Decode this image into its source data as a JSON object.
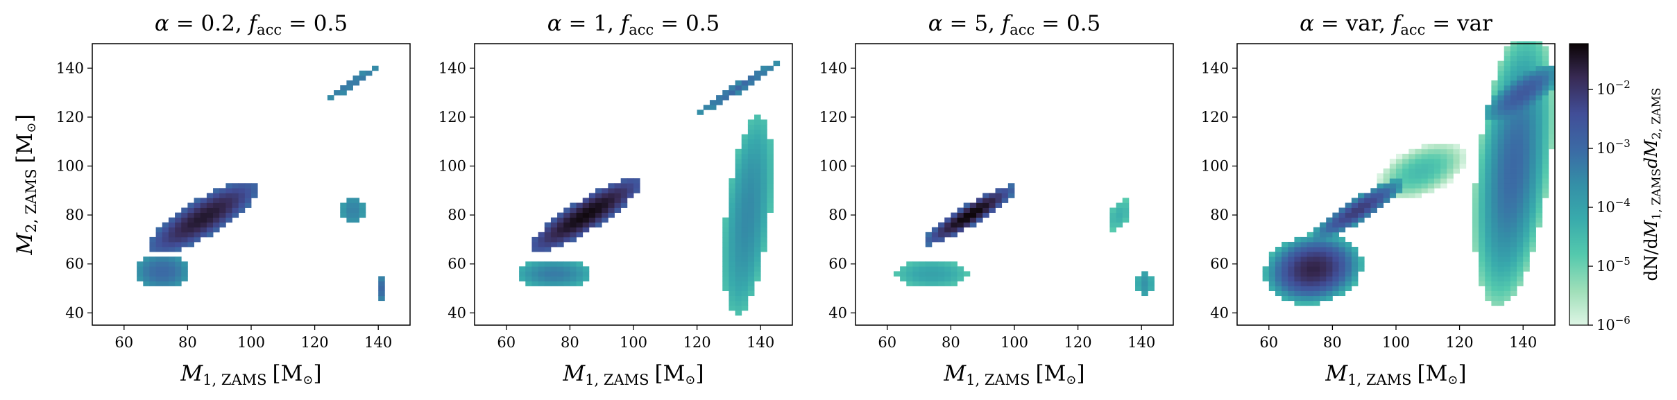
{
  "chart_data": {
    "type": "heatmap",
    "colormap": "mako_r",
    "color_scale": "log",
    "colorbar": {
      "range": [
        1e-06,
        0.06
      ],
      "ticks": [
        {
          "exp": -6,
          "text": "10"
        },
        {
          "exp": -5,
          "text": "10"
        },
        {
          "exp": -4,
          "text": "10"
        },
        {
          "exp": -3,
          "text": "10"
        },
        {
          "exp": -2,
          "text": "10"
        }
      ],
      "tick_exponents": [
        "−6",
        "−5",
        "−4",
        "−3",
        "−2"
      ],
      "label_parts": {
        "pre": "dN/d",
        "m1": "M",
        "sub1": "1, ZAMS",
        "d": "d",
        "m2": "M",
        "sub2": "2, ZAMS"
      }
    },
    "xlim": [
      50,
      150
    ],
    "ylim": [
      35,
      150
    ],
    "xticks": [
      60,
      80,
      100,
      120,
      140
    ],
    "yticks": [
      40,
      60,
      80,
      100,
      120,
      140
    ],
    "xlabel_parts": {
      "sym": "M",
      "sub": "1, ZAMS",
      "unit": "[M",
      "unit_end": "]"
    },
    "ylabel_parts": {
      "sym": "M",
      "sub": "2, ZAMS",
      "unit": "[M",
      "unit_end": "]"
    },
    "panels": [
      {
        "title_parts": {
          "a": "α",
          "a_val": " = 0.2, ",
          "f": "f",
          "f_sub": "acc",
          "f_val": " = 0.5"
        },
        "blobs": [
          {
            "cx": 85,
            "cy": 79,
            "len": 19,
            "wid": 6,
            "angle": 40,
            "peak": 0.03,
            "spread": 1.2
          },
          {
            "cx": 72,
            "cy": 57,
            "len": 7,
            "wid": 6,
            "angle": 0,
            "peak": 0.001,
            "spread": 0.6
          },
          {
            "cx": 132,
            "cy": 134,
            "len": 10,
            "wid": 1.5,
            "angle": 40,
            "peak": 0.0006,
            "spread": 0.4
          },
          {
            "cx": 132,
            "cy": 82,
            "len": 5,
            "wid": 3,
            "angle": 90,
            "peak": 0.0004,
            "spread": 0.4
          },
          {
            "cx": 141,
            "cy": 50,
            "len": 4,
            "wid": 1.5,
            "angle": 90,
            "peak": 0.001,
            "spread": 0.4
          }
        ]
      },
      {
        "title_parts": {
          "a": "α",
          "a_val": " = 1, ",
          "f": "f",
          "f_sub": "acc",
          "f_val": " = 0.5"
        },
        "blobs": [
          {
            "cx": 85,
            "cy": 80,
            "len": 20,
            "wid": 5,
            "angle": 40,
            "peak": 0.05,
            "spread": 1.2
          },
          {
            "cx": 75,
            "cy": 56,
            "len": 10,
            "wid": 5,
            "angle": 0,
            "peak": 0.0005,
            "spread": 0.8
          },
          {
            "cx": 133,
            "cy": 132,
            "len": 14,
            "wid": 1.5,
            "angle": 40,
            "peak": 0.001,
            "spread": 0.5
          },
          {
            "cx": 136,
            "cy": 80,
            "len": 36,
            "wid": 6,
            "angle": 85,
            "peak": 0.0003,
            "spread": 0.9
          }
        ]
      },
      {
        "title_parts": {
          "a": "α",
          "a_val": " = 5, ",
          "f": "f",
          "f_sub": "acc",
          "f_val": " = 0.5"
        },
        "blobs": [
          {
            "cx": 86,
            "cy": 80,
            "len": 16,
            "wid": 3.5,
            "angle": 40,
            "peak": 0.06,
            "spread": 1.5
          },
          {
            "cx": 74,
            "cy": 56,
            "len": 10,
            "wid": 5,
            "angle": 0,
            "peak": 0.0001,
            "spread": 0.6
          },
          {
            "cx": 133,
            "cy": 80,
            "len": 6,
            "wid": 3,
            "angle": 70,
            "peak": 5e-05,
            "spread": 0.5
          },
          {
            "cx": 141,
            "cy": 52,
            "len": 5,
            "wid": 2,
            "angle": 90,
            "peak": 0.0002,
            "spread": 0.5
          }
        ]
      },
      {
        "title_parts": {
          "a": "α",
          "a_val": " = var, ",
          "f": "f",
          "f_sub": "acc",
          "f_val": " = var"
        },
        "blobs": [
          {
            "cx": 74,
            "cy": 58,
            "len": 14,
            "wid": 12,
            "angle": 30,
            "peak": 0.02,
            "spread": 2.2
          },
          {
            "cx": 88,
            "cy": 82,
            "len": 16,
            "wid": 4,
            "angle": 40,
            "peak": 0.008,
            "spread": 1.6
          },
          {
            "cx": 108,
            "cy": 98,
            "len": 14,
            "wid": 8,
            "angle": 35,
            "peak": 3e-05,
            "spread": 1.2
          },
          {
            "cx": 137,
            "cy": 100,
            "len": 50,
            "wid": 10,
            "angle": 85,
            "peak": 0.001,
            "spread": 1.8
          },
          {
            "cx": 140,
            "cy": 130,
            "len": 14,
            "wid": 5,
            "angle": 45,
            "peak": 0.002,
            "spread": 1.2
          }
        ]
      }
    ]
  }
}
